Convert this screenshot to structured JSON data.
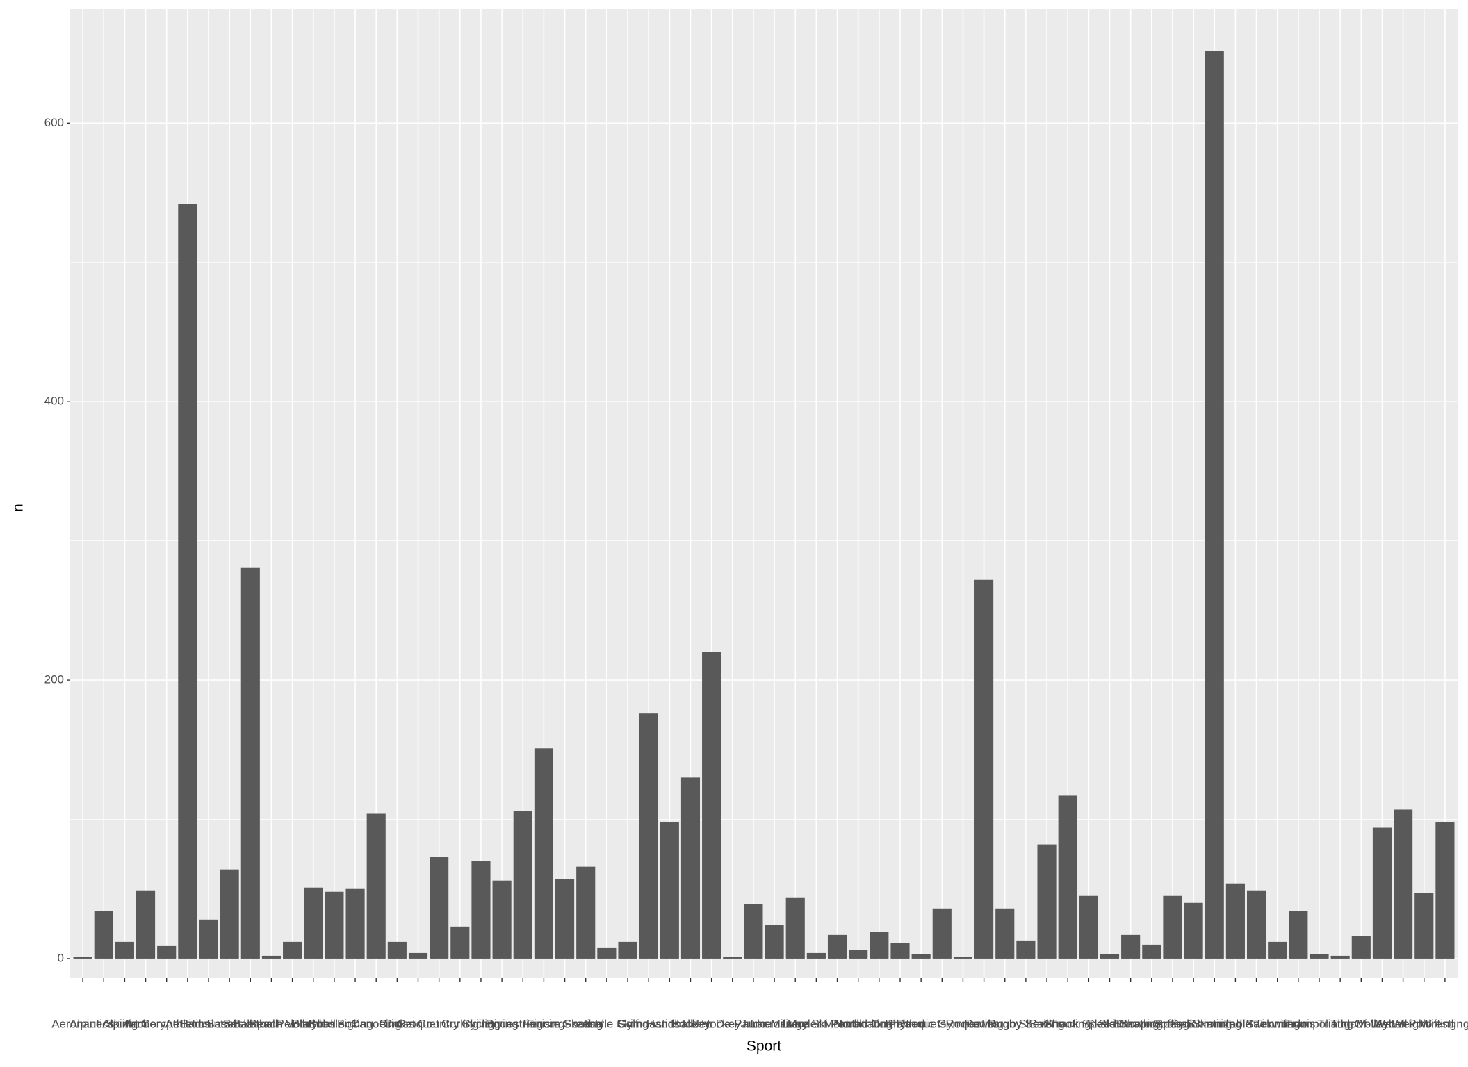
{
  "chart_data": {
    "type": "bar",
    "x_label": "Sport",
    "y_label": "n",
    "categories": [
      "Aeronautics",
      "Alpine Skiing",
      "Alpinism",
      "Archery",
      "Art Competitions",
      "Athletics",
      "Badminton",
      "Baseball",
      "Basketball",
      "Basque Pelota",
      "Beach Volleyball",
      "Biathlon",
      "Bobsleigh",
      "Boxing",
      "Canoeing",
      "Cricket",
      "Croquet",
      "Cross Country Skiing",
      "Curling",
      "Cycling",
      "Diving",
      "Equestrianism",
      "Fencing",
      "Figure Skating",
      "Football",
      "Freestyle Skiing",
      "Golf",
      "Gymnastics",
      "Handball",
      "Hockey",
      "Ice Hockey",
      "Jeu De Paume",
      "Judo",
      "Lacrosse",
      "Luge",
      "Military Ski Patrol",
      "Modern Pentathlon",
      "Motorboating",
      "Nordic Combined",
      "Polo",
      "Racquets",
      "Rhythmic Gymnastics",
      "Roque",
      "Rowing",
      "Rugby",
      "Rugby Sevens",
      "Sailing",
      "Shooting",
      "Short Track Speed Skating",
      "Skeleton",
      "Ski Jumping",
      "Snowboarding",
      "Softball",
      "Speed Skating",
      "Swimming",
      "Synchronized Swimming",
      "Table Tennis",
      "Taekwondo",
      "Tennis",
      "Trampolining",
      "Triathlon",
      "Tug-Of-War",
      "Volleyball",
      "Water Polo",
      "Weightlifting",
      "Wrestling"
    ],
    "values": [
      1,
      34,
      12,
      49,
      9,
      542,
      28,
      64,
      281,
      2,
      12,
      51,
      48,
      50,
      104,
      12,
      4,
      73,
      23,
      70,
      56,
      106,
      151,
      57,
      66,
      8,
      12,
      176,
      98,
      130,
      220,
      1,
      39,
      24,
      44,
      4,
      17,
      6,
      19,
      11,
      3,
      36,
      1,
      272,
      36,
      13,
      82,
      117,
      45,
      3,
      17,
      10,
      45,
      40,
      652,
      54,
      49,
      12,
      34,
      3,
      2,
      16,
      94,
      107,
      47,
      98
    ],
    "color": "#595959",
    "ylim": [
      -14,
      682
    ],
    "yticks": [
      0,
      200,
      400,
      600
    ],
    "minor_yticks": [
      100,
      300,
      500
    ],
    "grid": true
  }
}
